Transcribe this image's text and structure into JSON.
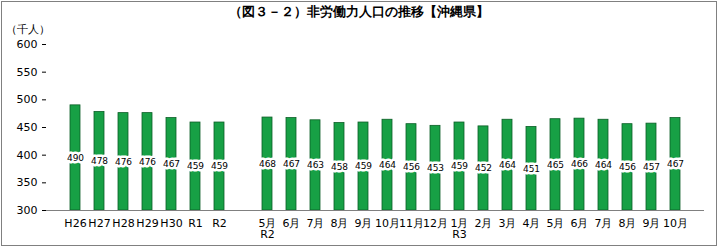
{
  "chart_data": {
    "type": "bar",
    "title": "（図３－２）非労働力人口の推移【沖縄県】",
    "y_label": "（千人）",
    "categories": [
      "H26",
      "H27",
      "H28",
      "H29",
      "H30",
      "R1",
      "R2",
      null,
      "5月\nR2",
      "6月",
      "7月",
      "8月",
      "9月",
      "10月",
      "11月",
      "12月",
      "1月\nR3",
      "2月",
      "3月",
      "4月",
      "5月",
      "6月",
      "7月",
      "8月",
      "9月",
      "10月"
    ],
    "values": [
      490,
      478,
      476,
      476,
      467,
      459,
      459,
      null,
      468,
      467,
      463,
      458,
      459,
      464,
      456,
      453,
      459,
      452,
      464,
      451,
      465,
      466,
      464,
      456,
      457,
      467
    ],
    "color": "#17a045",
    "ylim": [
      300,
      600
    ],
    "yticks": [
      300,
      350,
      400,
      450,
      500,
      550,
      600
    ],
    "grid": false,
    "data_labels": true
  }
}
